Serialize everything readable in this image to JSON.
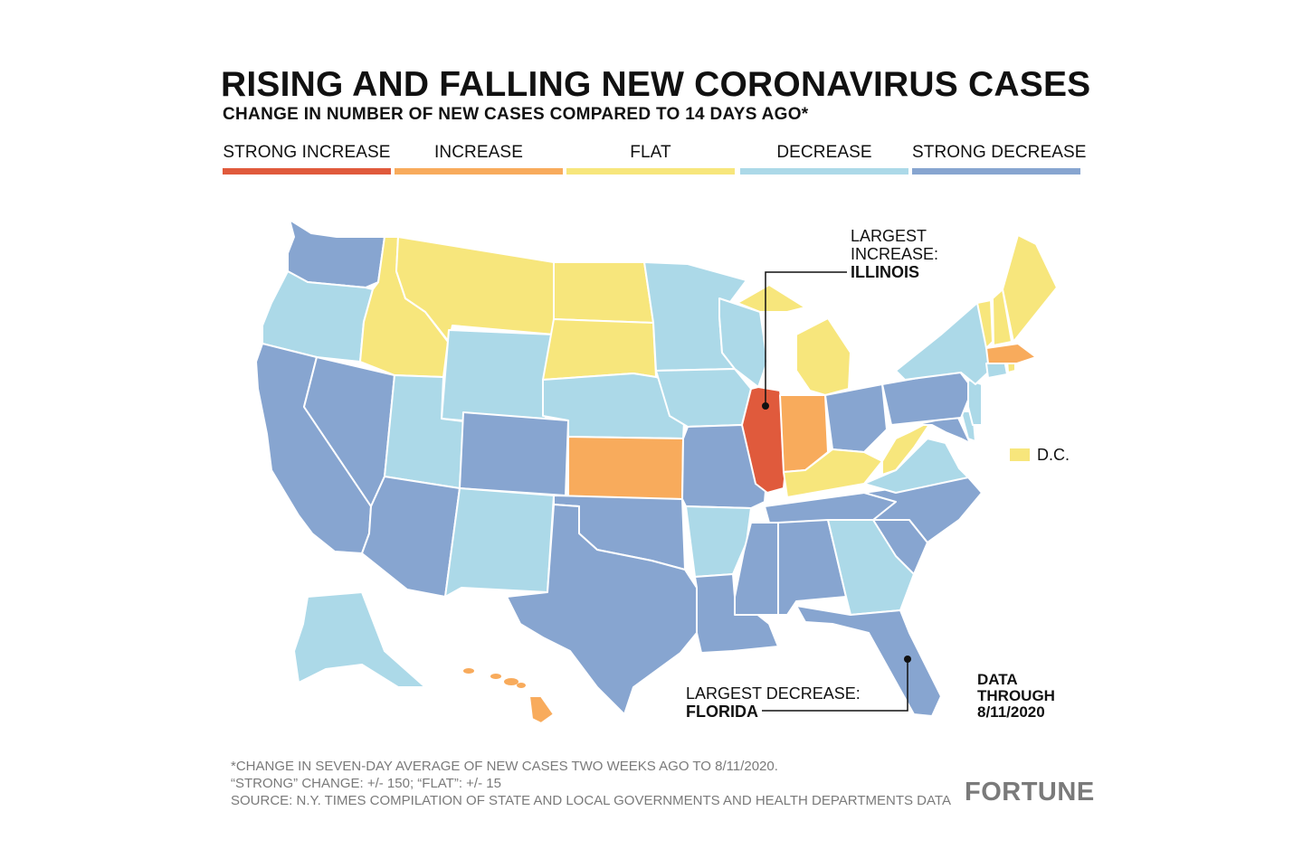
{
  "title": "RISING AND FALLING NEW CORONAVIRUS CASES",
  "subtitle": "CHANGE IN NUMBER OF NEW CASES COMPARED TO 14 DAYS AGO*",
  "legend": [
    {
      "label": "STRONG INCREASE",
      "color": "#e05a3c"
    },
    {
      "label": "INCREASE",
      "color": "#f8ab5c"
    },
    {
      "label": "FLAT",
      "color": "#f7e67c"
    },
    {
      "label": "DECREASE",
      "color": "#acd9e8"
    },
    {
      "label": "STRONG DECREASE",
      "color": "#87a5d0"
    }
  ],
  "annotations": {
    "largest_increase_label": "LARGEST",
    "largest_increase_label2": "INCREASE:",
    "largest_increase_state": "ILLINOIS",
    "largest_decrease_label": "LARGEST DECREASE:",
    "largest_decrease_state": "FLORIDA"
  },
  "dc_label": "D.C.",
  "dc_category": "FLAT",
  "data_through": [
    "DATA",
    "THROUGH",
    "8/11/2020"
  ],
  "footnotes": [
    "*CHANGE IN SEVEN-DAY AVERAGE OF NEW CASES TWO WEEKS AGO TO 8/11/2020.",
    "“STRONG” CHANGE: +/- 150; “FLAT”: +/- 15",
    "SOURCE: N.Y. TIMES COMPILATION OF STATE AND LOCAL GOVERNMENTS AND HEALTH DEPARTMENTS DATA"
  ],
  "logo": "FORTUNE",
  "states": {
    "WA": "STRONG DECREASE",
    "OR": "DECREASE",
    "CA": "STRONG DECREASE",
    "ID": "FLAT",
    "NV": "STRONG DECREASE",
    "MT": "FLAT",
    "WY": "DECREASE",
    "UT": "DECREASE",
    "AZ": "STRONG DECREASE",
    "CO": "STRONG DECREASE",
    "NM": "DECREASE",
    "ND": "FLAT",
    "SD": "FLAT",
    "NE": "DECREASE",
    "KS": "INCREASE",
    "OK": "STRONG DECREASE",
    "TX": "STRONG DECREASE",
    "MN": "DECREASE",
    "IA": "DECREASE",
    "MO": "STRONG DECREASE",
    "AR": "DECREASE",
    "LA": "STRONG DECREASE",
    "WI": "DECREASE",
    "IL": "STRONG INCREASE",
    "MI": "FLAT",
    "IN": "INCREASE",
    "OH": "STRONG DECREASE",
    "KY": "FLAT",
    "TN": "STRONG DECREASE",
    "MS": "STRONG DECREASE",
    "AL": "STRONG DECREASE",
    "GA": "DECREASE",
    "FL": "STRONG DECREASE",
    "SC": "STRONG DECREASE",
    "NC": "STRONG DECREASE",
    "VA": "DECREASE",
    "WV": "FLAT",
    "MD": "STRONG DECREASE",
    "DE": "DECREASE",
    "PA": "STRONG DECREASE",
    "NJ": "DECREASE",
    "NY": "DECREASE",
    "CT": "DECREASE",
    "RI": "FLAT",
    "MA": "INCREASE",
    "VT": "FLAT",
    "NH": "FLAT",
    "ME": "FLAT",
    "AK": "DECREASE",
    "HI": "INCREASE"
  }
}
